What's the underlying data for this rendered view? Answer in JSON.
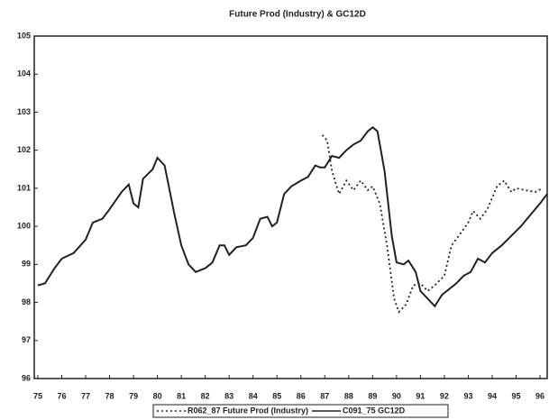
{
  "chart_data": {
    "type": "line",
    "title": "Future Prod (Industry) & GC12D",
    "xlim": [
      74.85,
      96.3
    ],
    "xticks": [
      75,
      76,
      77,
      78,
      79,
      80,
      81,
      82,
      83,
      84,
      85,
      86,
      87,
      88,
      89,
      90,
      91,
      92,
      93,
      94,
      95,
      96
    ],
    "ylim": [
      96,
      105
    ],
    "yticks": [
      96,
      97,
      98,
      99,
      100,
      101,
      102,
      103,
      104,
      105
    ],
    "grid": false,
    "legend": "bottom",
    "series": [
      {
        "name": "R062_87 Future Prod (Industry)",
        "color": "#222222",
        "dash": "dotted",
        "x": [
          86.9,
          87.1,
          87.3,
          87.6,
          87.9,
          88.2,
          88.5,
          88.8,
          89.0,
          89.3,
          89.6,
          89.9,
          90.1,
          90.4,
          90.7,
          91.0,
          91.3,
          91.6,
          92.0,
          92.3,
          92.6,
          93.0,
          93.2,
          93.5,
          93.8,
          94.2,
          94.5,
          94.8,
          95.0,
          95.4,
          95.8,
          96.1
        ],
        "values": [
          102.4,
          102.25,
          101.45,
          100.85,
          101.2,
          100.95,
          101.2,
          100.95,
          101.05,
          100.6,
          99.5,
          98.1,
          97.75,
          97.95,
          98.45,
          98.5,
          98.3,
          98.45,
          98.7,
          99.5,
          99.75,
          100.1,
          100.4,
          100.2,
          100.45,
          101.05,
          101.2,
          100.9,
          101.0,
          100.95,
          100.9,
          101.0
        ]
      },
      {
        "name": "C091_75 GC12D",
        "color": "#222222",
        "dash": "solid",
        "x": [
          75.0,
          75.3,
          75.7,
          76.0,
          76.5,
          77.0,
          77.3,
          77.7,
          78.0,
          78.5,
          78.8,
          79.0,
          79.2,
          79.4,
          79.8,
          80.0,
          80.3,
          80.7,
          81.0,
          81.3,
          81.6,
          82.0,
          82.3,
          82.6,
          82.8,
          83.0,
          83.3,
          83.7,
          84.0,
          84.3,
          84.6,
          84.8,
          85.0,
          85.3,
          85.6,
          86.0,
          86.3,
          86.6,
          86.8,
          87.0,
          87.3,
          87.6,
          87.9,
          88.2,
          88.5,
          88.8,
          89.0,
          89.2,
          89.5,
          89.8,
          90.0,
          90.3,
          90.5,
          90.8,
          91.0,
          91.3,
          91.6,
          91.9,
          92.2,
          92.5,
          92.8,
          93.1,
          93.4,
          93.7,
          94.0,
          94.4,
          94.8,
          95.2,
          95.6,
          96.0,
          96.3
        ],
        "values": [
          98.45,
          98.5,
          98.9,
          99.15,
          99.3,
          99.65,
          100.1,
          100.2,
          100.45,
          100.9,
          101.1,
          100.6,
          100.5,
          101.25,
          101.5,
          101.8,
          101.6,
          100.35,
          99.5,
          99.0,
          98.8,
          98.9,
          99.05,
          99.5,
          99.5,
          99.25,
          99.45,
          99.5,
          99.7,
          100.2,
          100.25,
          100.0,
          100.1,
          100.85,
          101.05,
          101.2,
          101.3,
          101.6,
          101.55,
          101.55,
          101.85,
          101.8,
          102.0,
          102.15,
          102.25,
          102.5,
          102.6,
          102.5,
          101.45,
          99.75,
          99.05,
          99.0,
          99.1,
          98.8,
          98.3,
          98.1,
          97.9,
          98.2,
          98.35,
          98.5,
          98.7,
          98.8,
          99.15,
          99.05,
          99.3,
          99.5,
          99.75,
          100.0,
          100.3,
          100.6,
          100.85
        ]
      }
    ]
  }
}
